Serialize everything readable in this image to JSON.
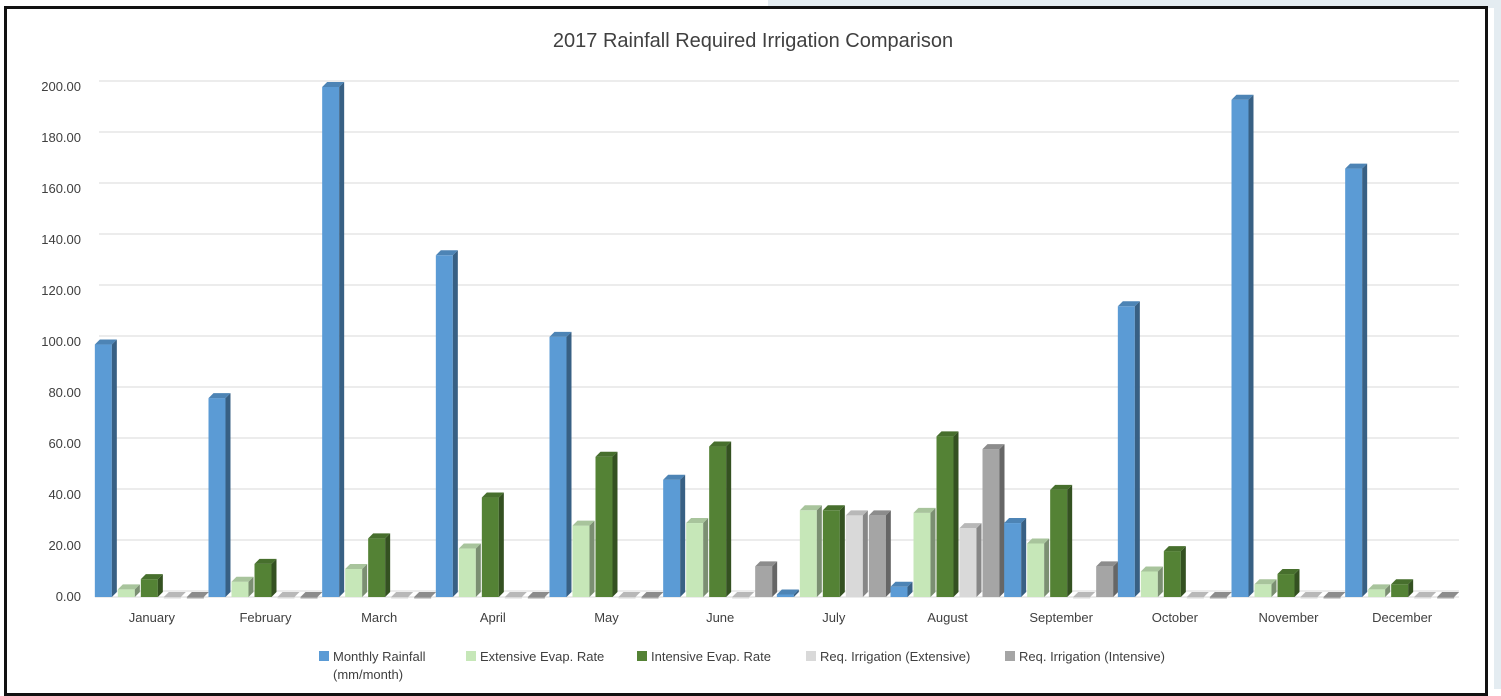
{
  "chart_data": {
    "type": "bar",
    "title": "2017 Rainfall Required Irrigation Comparison",
    "xlabel": "",
    "ylabel": "",
    "ylim": [
      0,
      200
    ],
    "yticks": [
      "0.00",
      "20.00",
      "40.00",
      "60.00",
      "80.00",
      "100.00",
      "120.00",
      "140.00",
      "160.00",
      "180.00",
      "200.00"
    ],
    "grid": true,
    "legend_position": "bottom",
    "categories": [
      "January",
      "February",
      "March",
      "April",
      "May",
      "June",
      "July",
      "August",
      "September",
      "October",
      "November",
      "December"
    ],
    "series": [
      {
        "name": "Monthly Rainfall (mm/month)",
        "color": "#5b9bd5",
        "values": [
          99,
          78,
          200,
          134,
          102,
          46,
          1,
          4,
          29,
          114,
          195,
          168
        ]
      },
      {
        "name": "Extensive Evap. Rate",
        "color": "#c6e7b8",
        "values": [
          3,
          6,
          11,
          19,
          28,
          29,
          34,
          33,
          21,
          10,
          5,
          3
        ]
      },
      {
        "name": "Intensive  Evap. Rate",
        "color": "#548235",
        "values": [
          7,
          13,
          23,
          39,
          55,
          59,
          34,
          63,
          42,
          18,
          9,
          5
        ]
      },
      {
        "name": "Req. Irrigation (Extensive)",
        "color": "#d9d9d9",
        "values": [
          0,
          0,
          0,
          0,
          0,
          0,
          32,
          27,
          0,
          0,
          0,
          0
        ]
      },
      {
        "name": "Req. Irrigation (Intensive)",
        "color": "#a5a5a5",
        "values": [
          0,
          0,
          0,
          0,
          0,
          12,
          32,
          58,
          12,
          0,
          0,
          0
        ]
      }
    ],
    "legend_lines": [
      [
        "Monthly Rainfall",
        "(mm/month)"
      ],
      [
        "Extensive Evap. Rate"
      ],
      [
        "Intensive  Evap. Rate"
      ],
      [
        "Req. Irrigation (Extensive)"
      ],
      [
        "Req. Irrigation (Intensive)"
      ]
    ]
  }
}
